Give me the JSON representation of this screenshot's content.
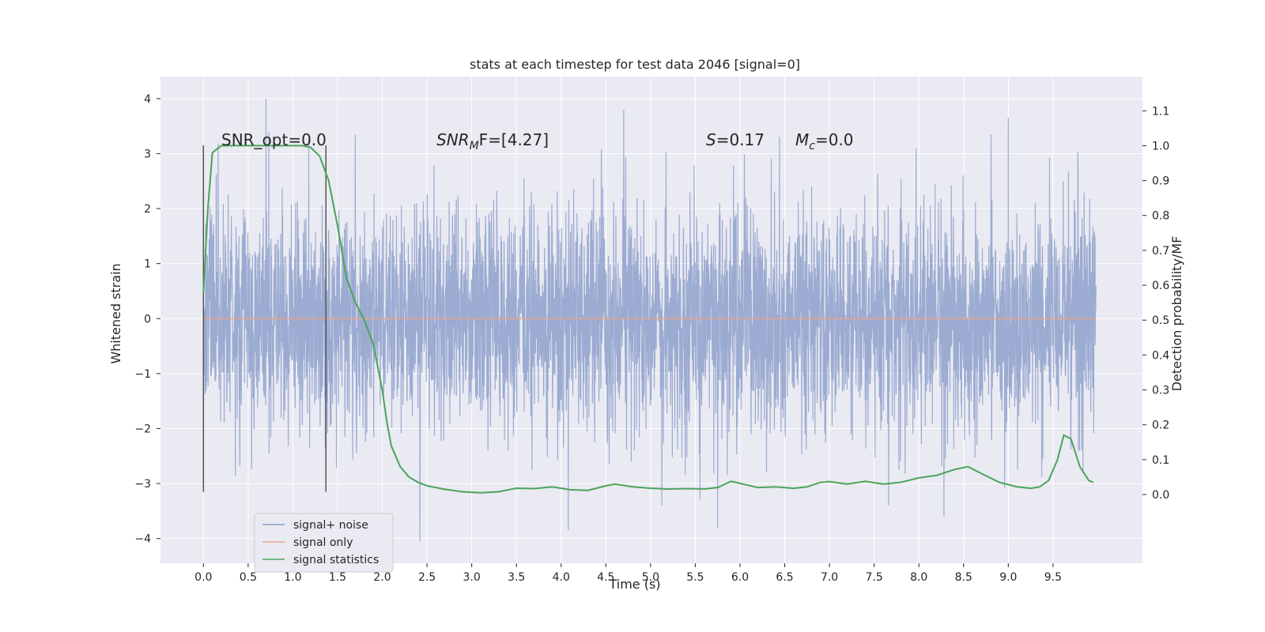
{
  "chart_data": {
    "type": "line",
    "title": "stats at each timestep for test data 2046 [signal=0]",
    "xlabel": "Time (s)",
    "ylabel": "Whitened strain",
    "ylabel_right": "Detection probability/MF",
    "xlim": [
      -0.48,
      10.5
    ],
    "ylim": [
      -4.45,
      4.4
    ],
    "ylim_right": [
      -0.197,
      1.198
    ],
    "x_ticks": [
      "0.0",
      "0.5",
      "1.0",
      "1.5",
      "2.0",
      "2.5",
      "3.0",
      "3.5",
      "4.0",
      "4.5",
      "5.0",
      "5.5",
      "6.0",
      "6.5",
      "7.0",
      "7.5",
      "8.0",
      "8.5",
      "9.0",
      "9.5"
    ],
    "y_ticks": [
      "4",
      "3",
      "2",
      "1",
      "0",
      "−1",
      "−2",
      "−3",
      "−4"
    ],
    "y_right_ticks": [
      "1.1",
      "1.0",
      "0.9",
      "0.8",
      "0.7",
      "0.6",
      "0.5",
      "0.4",
      "0.3",
      "0.2",
      "0.1",
      "0.0"
    ],
    "grid": true,
    "legend_position": "bottom-left",
    "annotations": {
      "snr_opt": "SNR_opt=0.0",
      "snr_mf_sym": "SNR",
      "snr_mf_sub": "M",
      "snr_mf_rest": "F=[4.27]",
      "s_sym": "S",
      "s_rest": "=0.17",
      "mc_sym": "M",
      "mc_sub": "c",
      "mc_rest": "=0.0"
    },
    "vlines": [
      0.0,
      1.37
    ],
    "series": [
      {
        "name": "signal+ noise",
        "color": "#8da0cb",
        "x_range": [
          0.0,
          9.98
        ],
        "description": "whitened noise, approx. standard normal, peaks near 4.0 at t=0.7 and -4.05 at t=2.42",
        "highlights": [
          {
            "x": 0.7,
            "y": 4.0
          },
          {
            "x": 2.42,
            "y": -4.05
          },
          {
            "x": 4.08,
            "y": -3.85
          },
          {
            "x": 8.28,
            "y": -3.6
          },
          {
            "x": 5.75,
            "y": -3.8
          },
          {
            "x": 4.7,
            "y": 3.8
          },
          {
            "x": 9.0,
            "y": 3.65
          }
        ]
      },
      {
        "name": "signal only",
        "color": "#e5a68a",
        "x": [
          0.0,
          9.98
        ],
        "y": [
          0.0,
          0.0
        ]
      },
      {
        "name": "signal statistics",
        "color": "#4aa45a",
        "axis": "right",
        "x": [
          0.0,
          0.05,
          0.1,
          0.15,
          0.2,
          0.4,
          0.6,
          0.8,
          1.0,
          1.1,
          1.2,
          1.3,
          1.4,
          1.5,
          1.6,
          1.7,
          1.8,
          1.9,
          2.0,
          2.05,
          2.1,
          2.2,
          2.3,
          2.4,
          2.5,
          2.7,
          2.9,
          3.1,
          3.3,
          3.5,
          3.7,
          3.9,
          4.1,
          4.3,
          4.5,
          4.6,
          4.8,
          5.0,
          5.2,
          5.4,
          5.6,
          5.75,
          5.9,
          6.0,
          6.2,
          6.4,
          6.6,
          6.75,
          6.9,
          7.0,
          7.2,
          7.4,
          7.6,
          7.8,
          8.0,
          8.2,
          8.4,
          8.55,
          8.7,
          8.9,
          9.1,
          9.25,
          9.35,
          9.45,
          9.55,
          9.62,
          9.7,
          9.8,
          9.9,
          9.95
        ],
        "y": [
          0.58,
          0.82,
          0.98,
          0.99,
          1.0,
          1.0,
          1.0,
          1.0,
          1.0,
          1.0,
          0.995,
          0.97,
          0.9,
          0.77,
          0.62,
          0.55,
          0.5,
          0.43,
          0.3,
          0.21,
          0.14,
          0.08,
          0.05,
          0.035,
          0.025,
          0.015,
          0.008,
          0.005,
          0.008,
          0.018,
          0.017,
          0.022,
          0.014,
          0.012,
          0.025,
          0.03,
          0.022,
          0.018,
          0.016,
          0.017,
          0.016,
          0.02,
          0.038,
          0.032,
          0.02,
          0.022,
          0.018,
          0.022,
          0.035,
          0.037,
          0.03,
          0.038,
          0.03,
          0.035,
          0.048,
          0.055,
          0.072,
          0.08,
          0.06,
          0.035,
          0.022,
          0.018,
          0.022,
          0.04,
          0.1,
          0.17,
          0.16,
          0.08,
          0.04,
          0.035
        ]
      }
    ]
  }
}
